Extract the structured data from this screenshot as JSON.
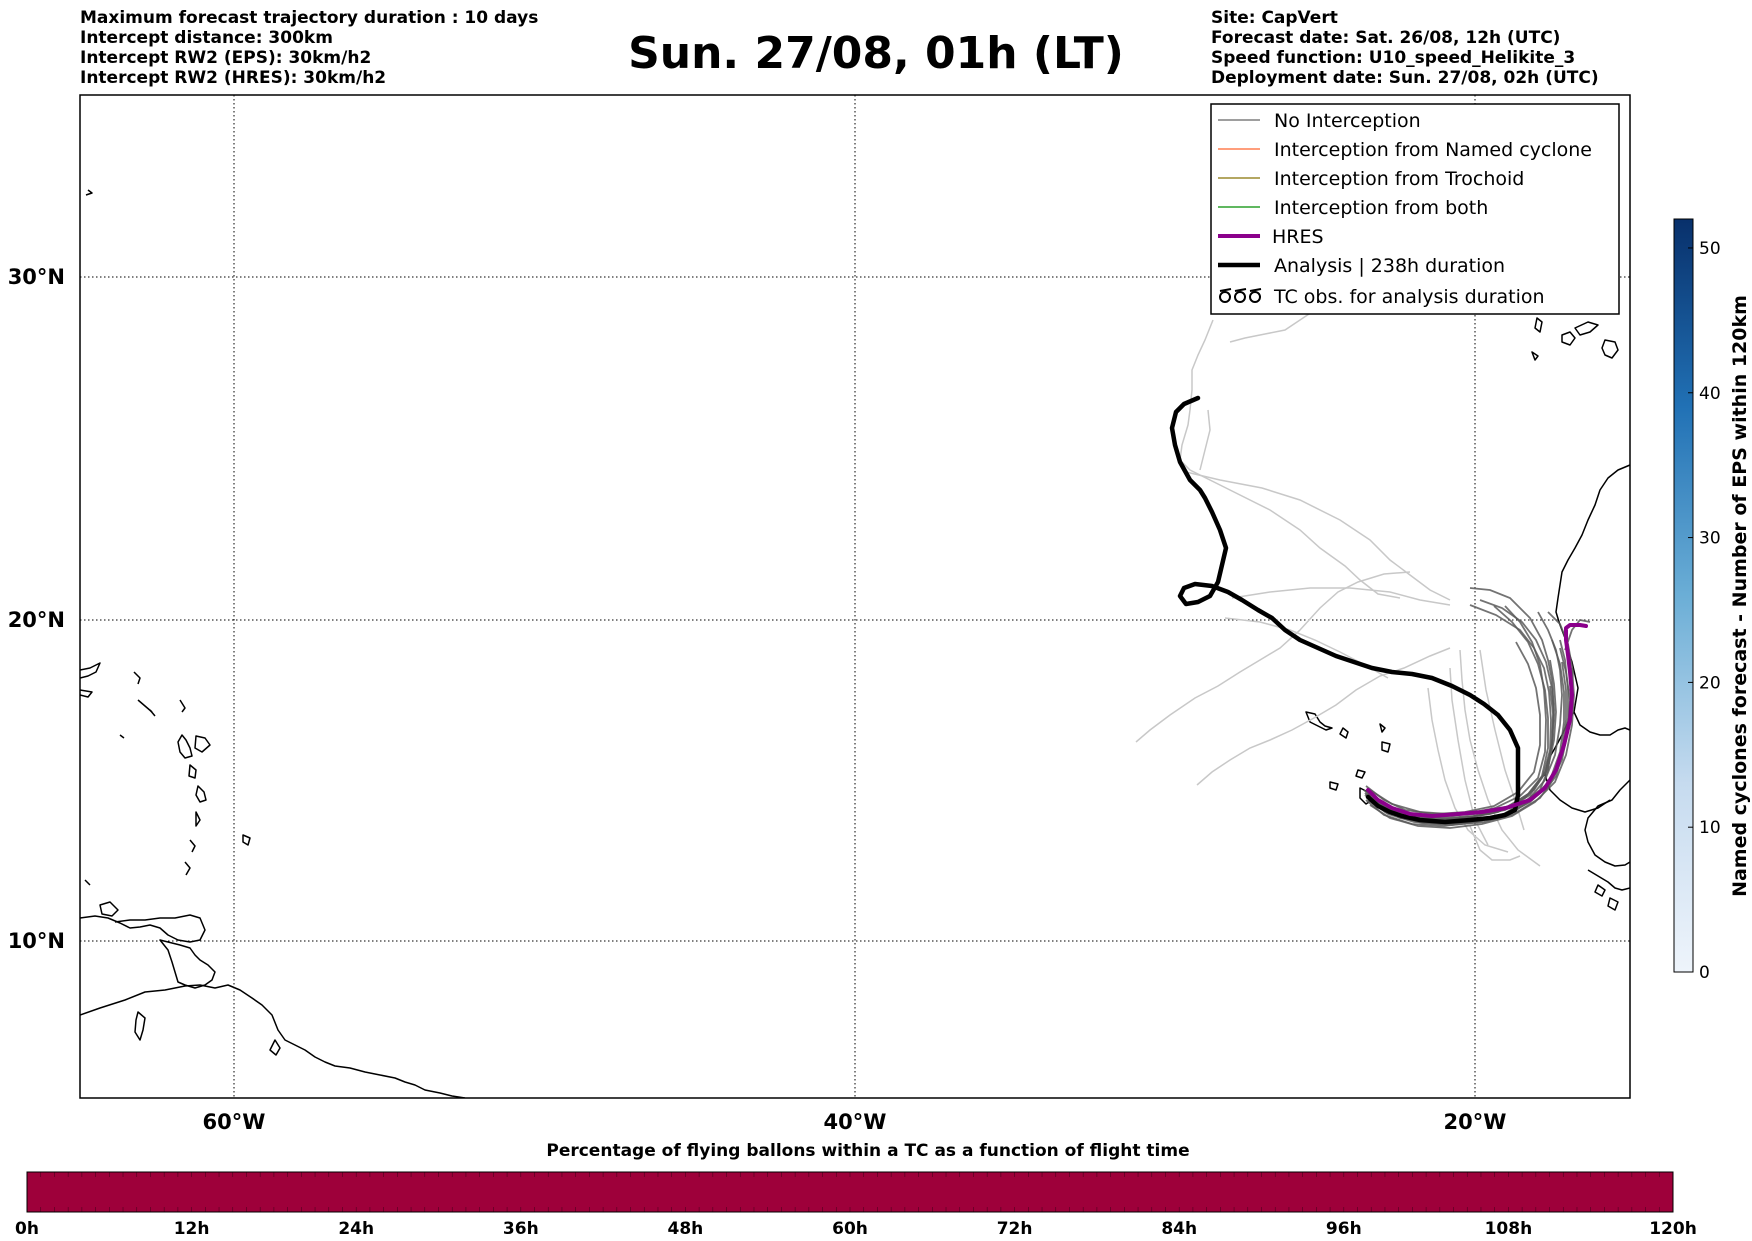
{
  "header": {
    "title": "Sun. 27/08, 01h (LT)",
    "left_info": [
      "Maximum forecast trajectory duration : 10 days",
      "Intercept distance: 300km",
      "Intercept RW2 (EPS):  30km/h2",
      "Intercept RW2 (HRES): 30km/h2"
    ],
    "right_info": [
      "Site: CapVert",
      "Forecast date: Sat. 26/08, 12h (UTC)",
      "Speed function: U10_speed_Helikite_3",
      "Deployment date: Sun. 27/08, 02h (UTC)"
    ]
  },
  "map": {
    "lon_range": [
      -65,
      -15
    ],
    "lat_range": [
      5,
      35
    ],
    "lat_ticks": [
      {
        "value": 30,
        "label": "30°N"
      },
      {
        "value": 20,
        "label": "20°N"
      },
      {
        "value": 10,
        "label": "10°N"
      }
    ],
    "lon_ticks": [
      {
        "value": -60,
        "label": "60°W"
      },
      {
        "value": -40,
        "label": "40°W"
      },
      {
        "value": -20,
        "label": "20°W"
      }
    ]
  },
  "legend": {
    "items": [
      {
        "label": "No Interception",
        "color": "#7f7f7f",
        "style": "thin-line"
      },
      {
        "label": "Interception from Named cyclone",
        "color": "#ff7f50",
        "style": "thin-line"
      },
      {
        "label": "Interception from Trochoid",
        "color": "#9c8a2f",
        "style": "thin-line"
      },
      {
        "label": "Interception from both",
        "color": "#2ca02c",
        "style": "thin-line"
      },
      {
        "label": "HRES",
        "color": "#8b008b",
        "style": "thick-line"
      },
      {
        "label": "Analysis | 238h duration",
        "color": "#000000",
        "style": "thick-line"
      },
      {
        "label": "TC obs. for analysis duration",
        "color": "#000000",
        "style": "tc-symbol"
      }
    ]
  },
  "colorbar_right": {
    "label": "Named cyclones forecast - Number of EPS within 120km",
    "ticks": [
      "0",
      "10",
      "20",
      "30",
      "40",
      "50"
    ],
    "max": 52,
    "color_low": "#eef4fb",
    "color_high": "#08306b"
  },
  "colorbar_bottom": {
    "title": "Percentage of flying ballons within a TC as a function of flight time",
    "ticks": [
      "0h",
      "12h",
      "24h",
      "36h",
      "48h",
      "60h",
      "72h",
      "84h",
      "96h",
      "108h",
      "120h"
    ],
    "fill_color": "#9e003a",
    "fill_percent": 0
  },
  "colors": {
    "analysis": "#000000",
    "hres": "#8b008b",
    "eps_dark": "#5a5a5a",
    "eps_light": "#c8c8c8"
  }
}
